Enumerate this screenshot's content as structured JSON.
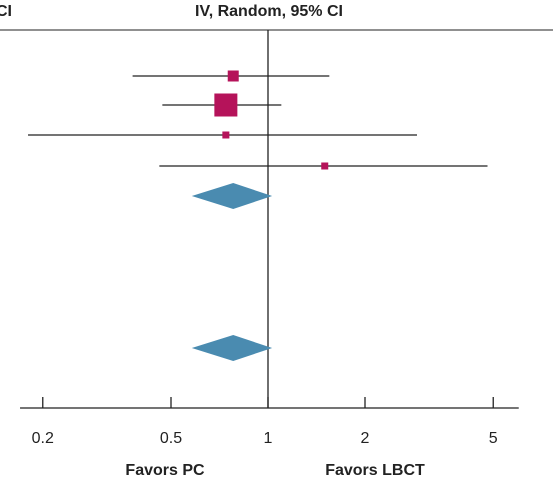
{
  "header": {
    "left_fragment": "CI",
    "method": "IV, Random, 95% CI"
  },
  "colors": {
    "study_marker": "#b5135a",
    "pooled_marker": "#4a8bb0",
    "lines": "#222222"
  },
  "chart_data": {
    "type": "forest",
    "scale": "log",
    "xlim": [
      0.17,
      6
    ],
    "null_value": 1,
    "x_ticks": [
      0.2,
      0.5,
      1,
      2,
      5
    ],
    "tick_labels": [
      "0.2",
      "0.5",
      "1",
      "2",
      "5"
    ],
    "favors_left": "Favors PC",
    "favors_right": "Favors LBCT",
    "studies": [
      {
        "estimate": 0.78,
        "ci_low": 0.38,
        "ci_high": 1.55,
        "weight": "medium"
      },
      {
        "estimate": 0.74,
        "ci_low": 0.47,
        "ci_high": 1.1,
        "weight": "large"
      },
      {
        "estimate": 0.74,
        "ci_low": 0.18,
        "ci_high": 2.9,
        "weight": "small"
      },
      {
        "estimate": 1.5,
        "ci_low": 0.46,
        "ci_high": 4.8,
        "weight": "small"
      }
    ],
    "pooled": [
      {
        "estimate": 0.78,
        "ci_low": 0.58,
        "ci_high": 1.03
      },
      {
        "estimate": 0.78,
        "ci_low": 0.58,
        "ci_high": 1.03
      }
    ]
  }
}
